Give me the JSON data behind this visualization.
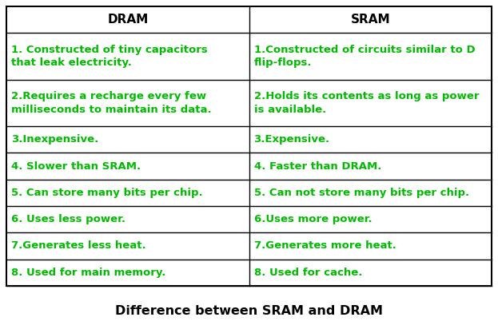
{
  "title": "Difference between SRAM and DRAM",
  "title_fontsize": 11.5,
  "col1_header": "DRAM",
  "col2_header": "SRAM",
  "header_fontsize": 11,
  "cell_fontsize": 9.5,
  "text_color": "#00bb00",
  "header_text_color": "#000000",
  "border_color": "#000000",
  "bg_color": "#ffffff",
  "rows": [
    [
      "1. Constructed of tiny capacitors\nthat leak electricity.",
      "1.Constructed of circuits similar to D\nflip-flops."
    ],
    [
      "2.Requires a recharge every few\nmilliseconds to maintain its data.",
      "2.Holds its contents as long as power\nis available."
    ],
    [
      "3.Inexpensive.",
      "3.Expensive."
    ],
    [
      "4. Slower than SRAM.",
      "4. Faster than DRAM."
    ],
    [
      "5. Can store many bits per chip.",
      "5. Can not store many bits per chip."
    ],
    [
      "6. Uses less power.",
      "6.Uses more power."
    ],
    [
      "7.Generates less heat.",
      "7.Generates more heat."
    ],
    [
      "8. Used for main memory.",
      "8. Used for cache."
    ]
  ],
  "row_heights_rel": [
    1.0,
    1.75,
    1.75,
    1.0,
    1.0,
    1.0,
    1.0,
    1.0,
    1.0
  ]
}
